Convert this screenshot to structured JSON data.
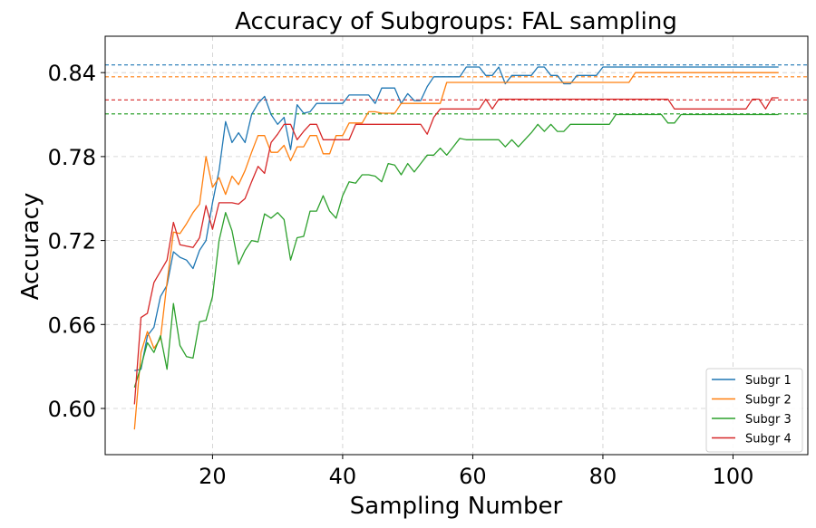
{
  "chart_data": {
    "type": "line",
    "title": "Accuracy of Subgroups: FAL sampling",
    "xlabel": "Sampling Number",
    "ylabel": "Accuracy",
    "xlim": [
      3.5,
      111.5
    ],
    "ylim": [
      0.567,
      0.866
    ],
    "xticks": [
      20,
      40,
      60,
      80,
      100
    ],
    "yticks": [
      0.6,
      0.66,
      0.72,
      0.78,
      0.84
    ],
    "xtick_labels": [
      "20",
      "40",
      "60",
      "80",
      "100"
    ],
    "ytick_labels": [
      "0.60",
      "0.66",
      "0.72",
      "0.78",
      "0.84"
    ],
    "grid": true,
    "legend_position": "lower right",
    "x": [
      8,
      9,
      10,
      11,
      12,
      13,
      14,
      15,
      16,
      17,
      18,
      19,
      20,
      21,
      22,
      23,
      24,
      25,
      26,
      27,
      28,
      29,
      30,
      31,
      32,
      33,
      34,
      35,
      36,
      37,
      38,
      39,
      40,
      41,
      42,
      43,
      44,
      45,
      46,
      47,
      48,
      49,
      50,
      51,
      52,
      53,
      54,
      55,
      56,
      57,
      58,
      59,
      60,
      61,
      62,
      63,
      64,
      65,
      66,
      67,
      68,
      69,
      70,
      71,
      72,
      73,
      74,
      75,
      76,
      77,
      78,
      79,
      80,
      81,
      82,
      83,
      84,
      85,
      86,
      87,
      88,
      89,
      90,
      91,
      92,
      93,
      94,
      95,
      96,
      97,
      98,
      99,
      100,
      101,
      102,
      103,
      104,
      105,
      106,
      107
    ],
    "series": [
      {
        "name": "Subgr 1",
        "color": "#1f77b4",
        "values": [
          0.627,
          0.628,
          0.652,
          0.658,
          0.68,
          0.688,
          0.712,
          0.708,
          0.706,
          0.7,
          0.713,
          0.72,
          0.747,
          0.77,
          0.805,
          0.79,
          0.797,
          0.79,
          0.81,
          0.818,
          0.823,
          0.81,
          0.803,
          0.808,
          0.785,
          0.817,
          0.811,
          0.812,
          0.818,
          0.818,
          0.818,
          0.818,
          0.818,
          0.824,
          0.824,
          0.824,
          0.824,
          0.818,
          0.829,
          0.829,
          0.829,
          0.818,
          0.825,
          0.82,
          0.82,
          0.83,
          0.837,
          0.837,
          0.837,
          0.837,
          0.837,
          0.844,
          0.844,
          0.844,
          0.838,
          0.838,
          0.844,
          0.832,
          0.838,
          0.838,
          0.838,
          0.838,
          0.844,
          0.844,
          0.838,
          0.838,
          0.832,
          0.832,
          0.838,
          0.838,
          0.838,
          0.838,
          0.844,
          0.844,
          0.844,
          0.844,
          0.844,
          0.844,
          0.844,
          0.844,
          0.844,
          0.844,
          0.844,
          0.844,
          0.844,
          0.844,
          0.844,
          0.844,
          0.844,
          0.844,
          0.844,
          0.844,
          0.844,
          0.844,
          0.844,
          0.844,
          0.844,
          0.844,
          0.844,
          0.844
        ]
      },
      {
        "name": "Subgr 2",
        "color": "#ff7f0e",
        "values": [
          0.585,
          0.64,
          0.655,
          0.643,
          0.65,
          0.69,
          0.726,
          0.725,
          0.732,
          0.74,
          0.746,
          0.78,
          0.758,
          0.765,
          0.753,
          0.766,
          0.76,
          0.77,
          0.783,
          0.795,
          0.795,
          0.783,
          0.783,
          0.788,
          0.777,
          0.787,
          0.787,
          0.795,
          0.795,
          0.782,
          0.782,
          0.795,
          0.795,
          0.804,
          0.804,
          0.804,
          0.812,
          0.812,
          0.811,
          0.811,
          0.811,
          0.818,
          0.818,
          0.818,
          0.818,
          0.818,
          0.818,
          0.818,
          0.833,
          0.833,
          0.833,
          0.833,
          0.833,
          0.833,
          0.833,
          0.833,
          0.833,
          0.833,
          0.833,
          0.833,
          0.833,
          0.833,
          0.833,
          0.833,
          0.833,
          0.833,
          0.833,
          0.833,
          0.833,
          0.833,
          0.833,
          0.833,
          0.833,
          0.833,
          0.833,
          0.833,
          0.833,
          0.84,
          0.84,
          0.84,
          0.84,
          0.84,
          0.84,
          0.84,
          0.84,
          0.84,
          0.84,
          0.84,
          0.84,
          0.84,
          0.84,
          0.84,
          0.84,
          0.84,
          0.84,
          0.84,
          0.84,
          0.84,
          0.84,
          0.84
        ]
      },
      {
        "name": "Subgr 3",
        "color": "#2ca02c",
        "values": [
          0.615,
          0.63,
          0.647,
          0.64,
          0.652,
          0.628,
          0.675,
          0.645,
          0.637,
          0.636,
          0.662,
          0.663,
          0.68,
          0.72,
          0.74,
          0.727,
          0.703,
          0.713,
          0.72,
          0.719,
          0.739,
          0.736,
          0.74,
          0.735,
          0.706,
          0.722,
          0.723,
          0.741,
          0.741,
          0.752,
          0.741,
          0.736,
          0.752,
          0.762,
          0.761,
          0.767,
          0.767,
          0.766,
          0.762,
          0.775,
          0.774,
          0.767,
          0.775,
          0.769,
          0.775,
          0.781,
          0.781,
          0.786,
          0.781,
          0.787,
          0.793,
          0.792,
          0.792,
          0.792,
          0.792,
          0.792,
          0.792,
          0.787,
          0.792,
          0.787,
          0.792,
          0.797,
          0.803,
          0.798,
          0.803,
          0.798,
          0.798,
          0.803,
          0.803,
          0.803,
          0.803,
          0.803,
          0.803,
          0.803,
          0.81,
          0.81,
          0.81,
          0.81,
          0.81,
          0.81,
          0.81,
          0.81,
          0.804,
          0.804,
          0.81,
          0.81,
          0.81,
          0.81,
          0.81,
          0.81,
          0.81,
          0.81,
          0.81,
          0.81,
          0.81,
          0.81,
          0.81,
          0.81,
          0.81,
          0.81
        ]
      },
      {
        "name": "Subgr 4",
        "color": "#d62728",
        "values": [
          0.603,
          0.665,
          0.668,
          0.69,
          0.698,
          0.706,
          0.733,
          0.717,
          0.716,
          0.715,
          0.722,
          0.745,
          0.728,
          0.747,
          0.747,
          0.747,
          0.746,
          0.75,
          0.762,
          0.773,
          0.768,
          0.79,
          0.796,
          0.803,
          0.803,
          0.792,
          0.798,
          0.803,
          0.803,
          0.792,
          0.792,
          0.792,
          0.792,
          0.792,
          0.803,
          0.803,
          0.803,
          0.803,
          0.803,
          0.803,
          0.803,
          0.803,
          0.803,
          0.803,
          0.803,
          0.796,
          0.808,
          0.814,
          0.814,
          0.814,
          0.814,
          0.814,
          0.814,
          0.814,
          0.821,
          0.814,
          0.821,
          0.821,
          0.821,
          0.821,
          0.821,
          0.821,
          0.821,
          0.821,
          0.821,
          0.821,
          0.821,
          0.821,
          0.821,
          0.821,
          0.821,
          0.821,
          0.821,
          0.821,
          0.821,
          0.821,
          0.821,
          0.821,
          0.821,
          0.821,
          0.821,
          0.821,
          0.821,
          0.814,
          0.814,
          0.814,
          0.814,
          0.814,
          0.814,
          0.814,
          0.814,
          0.814,
          0.814,
          0.814,
          0.814,
          0.821,
          0.821,
          0.814,
          0.822,
          0.822
        ]
      }
    ],
    "reference_lines": [
      {
        "series": "Subgr 1",
        "y": 0.8455,
        "color": "#1f77b4",
        "style": "dashed"
      },
      {
        "series": "Subgr 2",
        "y": 0.837,
        "color": "#ff7f0e",
        "style": "dashed"
      },
      {
        "series": "Subgr 4",
        "y": 0.8205,
        "color": "#d62728",
        "style": "dashed"
      },
      {
        "series": "Subgr 3",
        "y": 0.8105,
        "color": "#2ca02c",
        "style": "dashed"
      }
    ]
  }
}
